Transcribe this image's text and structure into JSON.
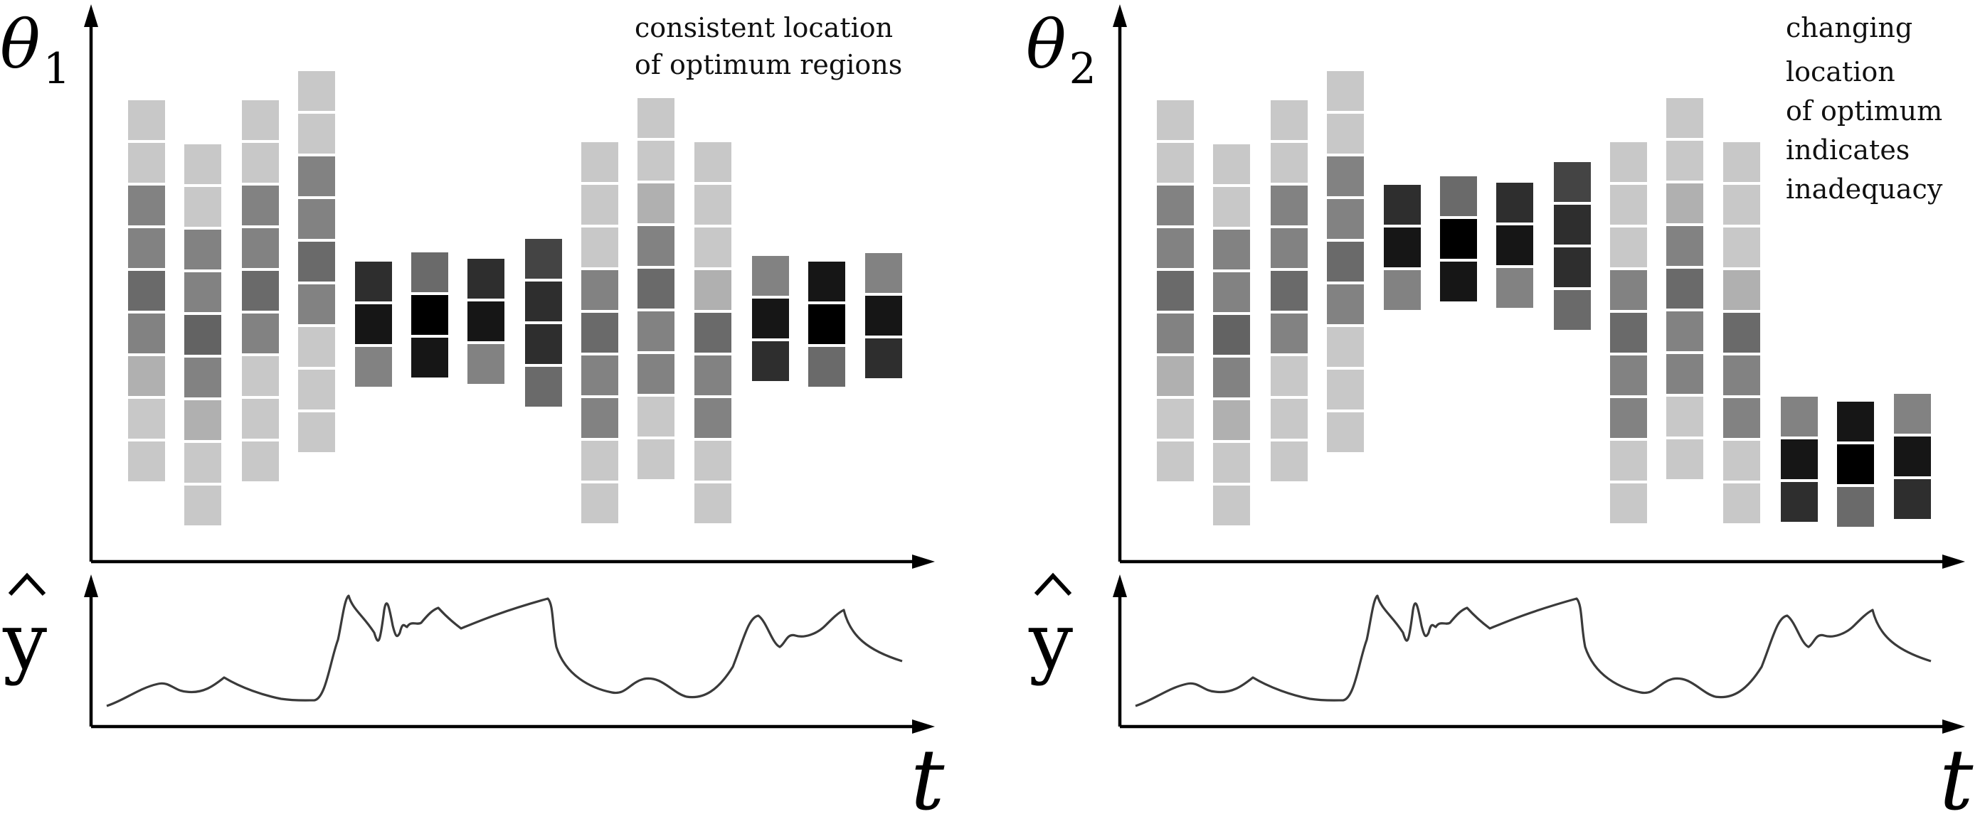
{
  "panels": [
    {
      "id": "left",
      "param_symbol": "θ",
      "param_subscript": "1",
      "output_symbol": "y",
      "time_symbol": "t",
      "annotation": [
        "consistent location",
        "of optimum regions"
      ],
      "columns": [
        [
          "#c8c8c8",
          "#c8c8c8",
          "#828282",
          "#828282",
          "#6a6a6a",
          "#828282",
          "#b0b0b0",
          "#c8c8c8",
          "#c8c8c8"
        ],
        [
          "#c8c8c8",
          "#c8c8c8",
          "#828282",
          "#828282",
          "#636363",
          "#828282",
          "#b0b0b0",
          "#c8c8c8",
          "#c8c8c8"
        ],
        [
          "#c8c8c8",
          "#c8c8c8",
          "#828282",
          "#828282",
          "#6a6a6a",
          "#828282",
          "#c8c8c8",
          "#c8c8c8",
          "#c8c8c8"
        ],
        [
          "#c8c8c8",
          "#c8c8c8",
          "#828282",
          "#828282",
          "#6a6a6a",
          "#828282",
          "#c8c8c8",
          "#c8c8c8",
          "#c8c8c8"
        ],
        [
          "#2e2e2e",
          "#161616",
          "#828282"
        ],
        [
          "#6a6a6a",
          "#000000",
          "#161616"
        ],
        [
          "#2e2e2e",
          "#161616",
          "#828282"
        ],
        [
          "#444444",
          "#2e2e2e",
          "#2e2e2e",
          "#6a6a6a"
        ],
        [
          "#c8c8c8",
          "#c8c8c8",
          "#c8c8c8",
          "#828282",
          "#6a6a6a",
          "#828282",
          "#828282",
          "#c8c8c8",
          "#c8c8c8"
        ],
        [
          "#c8c8c8",
          "#c8c8c8",
          "#b0b0b0",
          "#828282",
          "#6a6a6a",
          "#828282",
          "#828282",
          "#c8c8c8",
          "#c8c8c8"
        ],
        [
          "#c8c8c8",
          "#c8c8c8",
          "#c8c8c8",
          "#b0b0b0",
          "#6a6a6a",
          "#828282",
          "#828282",
          "#c8c8c8",
          "#c8c8c8"
        ],
        [
          "#828282",
          "#161616",
          "#2e2e2e"
        ],
        [
          "#161616",
          "#000000",
          "#6a6a6a"
        ],
        [
          "#828282",
          "#161616",
          "#2e2e2e"
        ]
      ]
    },
    {
      "id": "right",
      "param_symbol": "θ",
      "param_subscript": "2",
      "output_symbol": "y",
      "time_symbol": "t",
      "annotation": [
        "changing",
        "location",
        "of optimum",
        "indicates",
        "inadequacy"
      ],
      "columns": [
        [
          "#c8c8c8",
          "#c8c8c8",
          "#828282",
          "#828282",
          "#6a6a6a",
          "#828282",
          "#b0b0b0",
          "#c8c8c8",
          "#c8c8c8"
        ],
        [
          "#c8c8c8",
          "#c8c8c8",
          "#828282",
          "#828282",
          "#636363",
          "#828282",
          "#b0b0b0",
          "#c8c8c8",
          "#c8c8c8"
        ],
        [
          "#c8c8c8",
          "#c8c8c8",
          "#828282",
          "#828282",
          "#6a6a6a",
          "#828282",
          "#c8c8c8",
          "#c8c8c8",
          "#c8c8c8"
        ],
        [
          "#c8c8c8",
          "#c8c8c8",
          "#828282",
          "#828282",
          "#6a6a6a",
          "#828282",
          "#c8c8c8",
          "#c8c8c8",
          "#c8c8c8"
        ],
        [
          "#2e2e2e",
          "#161616",
          "#828282"
        ],
        [
          "#6a6a6a",
          "#000000",
          "#161616"
        ],
        [
          "#2e2e2e",
          "#161616",
          "#828282"
        ],
        [
          "#444444",
          "#2e2e2e",
          "#2e2e2e",
          "#6a6a6a"
        ],
        [
          "#c8c8c8",
          "#c8c8c8",
          "#c8c8c8",
          "#828282",
          "#6a6a6a",
          "#828282",
          "#828282",
          "#c8c8c8",
          "#c8c8c8"
        ],
        [
          "#c8c8c8",
          "#c8c8c8",
          "#b0b0b0",
          "#828282",
          "#6a6a6a",
          "#828282",
          "#828282",
          "#c8c8c8",
          "#c8c8c8"
        ],
        [
          "#c8c8c8",
          "#c8c8c8",
          "#c8c8c8",
          "#b0b0b0",
          "#6a6a6a",
          "#828282",
          "#828282",
          "#c8c8c8",
          "#c8c8c8"
        ],
        [
          "#828282",
          "#161616",
          "#2e2e2e"
        ],
        [
          "#161616",
          "#000000",
          "#6a6a6a"
        ],
        [
          "#828282",
          "#161616",
          "#2e2e2e"
        ]
      ]
    }
  ]
}
